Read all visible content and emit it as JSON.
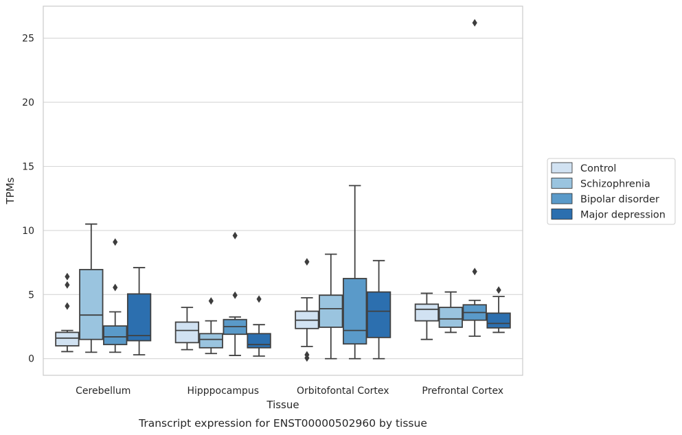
{
  "chart_data": {
    "type": "box",
    "caption": "Transcript expression for ENST00000502960 by tissue",
    "xlabel": "Tissue",
    "ylabel": "TPMs",
    "ylim": [
      -1.3,
      27.5
    ],
    "yticks": [
      0,
      5,
      10,
      15,
      20,
      25
    ],
    "grid": "horizontal",
    "legend_position": "right",
    "categories": [
      "Cerebellum",
      "Hipppocampus",
      "Orbitofontal Cortex",
      "Prefrontal Cortex"
    ],
    "series": [
      {
        "name": "Control",
        "color": "#d1e2f2",
        "boxes": [
          {
            "whisker_low": 0.55,
            "q1": 1.0,
            "median": 1.6,
            "q3": 2.05,
            "whisker_high": 2.2,
            "outliers": [
              6.4,
              5.75,
              4.1
            ]
          },
          {
            "whisker_low": 0.7,
            "q1": 1.25,
            "median": 2.2,
            "q3": 2.85,
            "whisker_high": 4.0,
            "outliers": []
          },
          {
            "whisker_low": 0.95,
            "q1": 2.35,
            "median": 3.0,
            "q3": 3.7,
            "whisker_high": 4.75,
            "outliers": [
              7.55,
              0.3,
              0.05
            ]
          },
          {
            "whisker_low": 1.5,
            "q1": 2.95,
            "median": 3.85,
            "q3": 4.25,
            "whisker_high": 5.1,
            "outliers": []
          }
        ]
      },
      {
        "name": "Schizophrenia",
        "color": "#9ac4df",
        "boxes": [
          {
            "whisker_low": 0.5,
            "q1": 1.5,
            "median": 3.4,
            "q3": 6.95,
            "whisker_high": 10.5,
            "outliers": []
          },
          {
            "whisker_low": 0.4,
            "q1": 0.85,
            "median": 1.5,
            "q3": 1.95,
            "whisker_high": 2.95,
            "outliers": [
              4.5
            ]
          },
          {
            "whisker_low": 0.0,
            "q1": 2.45,
            "median": 3.9,
            "q3": 4.95,
            "whisker_high": 8.15,
            "outliers": []
          },
          {
            "whisker_low": 2.05,
            "q1": 2.45,
            "median": 3.1,
            "q3": 4.0,
            "whisker_high": 5.2,
            "outliers": []
          }
        ]
      },
      {
        "name": "Bipolar disorder",
        "color": "#5a9ac9",
        "boxes": [
          {
            "whisker_low": 0.5,
            "q1": 1.1,
            "median": 1.7,
            "q3": 2.55,
            "whisker_high": 3.65,
            "outliers": [
              9.1,
              5.55
            ]
          },
          {
            "whisker_low": 0.25,
            "q1": 1.9,
            "median": 2.5,
            "q3": 3.05,
            "whisker_high": 3.25,
            "outliers": [
              9.6,
              4.95
            ]
          },
          {
            "whisker_low": 0.0,
            "q1": 1.15,
            "median": 2.2,
            "q3": 6.25,
            "whisker_high": 13.5,
            "outliers": []
          },
          {
            "whisker_low": 1.75,
            "q1": 3.0,
            "median": 3.6,
            "q3": 4.2,
            "whisker_high": 4.55,
            "outliers": [
              26.2,
              6.8
            ]
          }
        ]
      },
      {
        "name": "Major depression",
        "color": "#2c6faf",
        "boxes": [
          {
            "whisker_low": 0.3,
            "q1": 1.4,
            "median": 1.8,
            "q3": 5.05,
            "whisker_high": 7.1,
            "outliers": []
          },
          {
            "whisker_low": 0.2,
            "q1": 0.85,
            "median": 1.1,
            "q3": 1.95,
            "whisker_high": 2.65,
            "outliers": [
              4.65
            ]
          },
          {
            "whisker_low": 0.0,
            "q1": 1.65,
            "median": 3.7,
            "q3": 5.2,
            "whisker_high": 7.65,
            "outliers": []
          },
          {
            "whisker_low": 2.05,
            "q1": 2.4,
            "median": 2.75,
            "q3": 3.55,
            "whisker_high": 4.85,
            "outliers": [
              5.35
            ]
          }
        ]
      }
    ]
  },
  "colors": {
    "grid": "#d6d6d6",
    "spine": "#cccccc",
    "box_edge": "#404040",
    "text": "#262626"
  }
}
